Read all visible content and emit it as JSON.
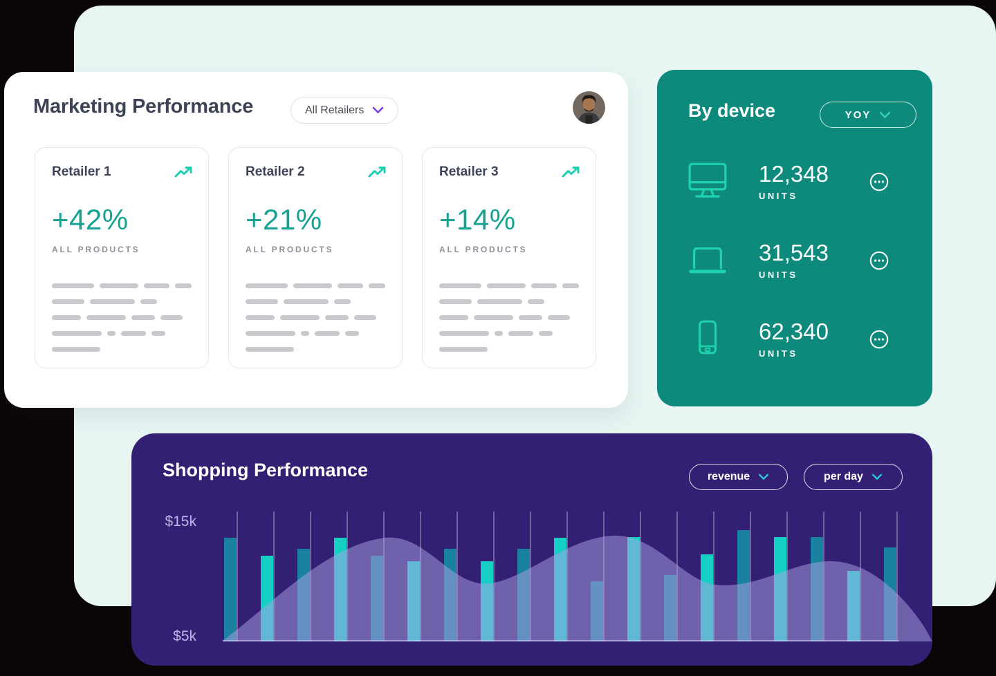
{
  "colors": {
    "mint_background": "#e7f6f3",
    "teal_card": "#0e8a7d",
    "purple_card": "#332075",
    "accent_teal": "#16a292",
    "icon_teal": "#1fd2ad",
    "purple_chevron": "#7a3df0",
    "bar_dark": "#1a81a0",
    "bar_bright": "#15cec4"
  },
  "marketing": {
    "title": "Marketing Performance",
    "filter_label": "All Retailers",
    "retailers": [
      {
        "name": "Retailer 1",
        "change": "+42%",
        "sublabel": "ALL PRODUCTS"
      },
      {
        "name": "Retailer 2",
        "change": "+21%",
        "sublabel": "ALL PRODUCTS"
      },
      {
        "name": "Retailer 3",
        "change": "+14%",
        "sublabel": "ALL PRODUCTS"
      }
    ],
    "skeleton_rows": [
      [
        62,
        57,
        38,
        24
      ],
      [
        47,
        65,
        24
      ],
      [
        42,
        57,
        34,
        32
      ],
      [
        72,
        12,
        36,
        20
      ],
      [
        70
      ]
    ]
  },
  "by_device": {
    "title": "By device",
    "filter_label": "YOY",
    "rows": [
      {
        "icon": "desktop-icon",
        "value": "12,348",
        "unit_label": "UNITS"
      },
      {
        "icon": "laptop-icon",
        "value": "31,543",
        "unit_label": "UNITS"
      },
      {
        "icon": "mobile-icon",
        "value": "62,340",
        "unit_label": "UNITS"
      }
    ]
  },
  "shopping": {
    "title": "Shopping Performance",
    "filters": [
      {
        "label": "revenue"
      },
      {
        "label": "per day"
      }
    ]
  },
  "chart_data": {
    "type": "bar",
    "title": "Shopping Performance",
    "series": [
      {
        "name": "revenue per day",
        "values_thousand_usd": [
          13.5,
          12.0,
          12.6,
          13.5,
          12.0,
          11.5,
          12.6,
          11.5,
          12.6,
          13.5,
          9.8,
          13.6,
          10.3,
          12.1,
          14.2,
          13.6,
          13.6,
          10.7,
          12.7
        ]
      }
    ],
    "bar_color_pattern": [
      "#1a81a0",
      "#15cec4"
    ],
    "area_overlay": true,
    "area_overlay_color": "rgba(173,162,228,0.5)",
    "y_axis": {
      "labels": [
        "$15k",
        "$5k"
      ],
      "top_value_k": 15,
      "bottom_value_k": 5
    },
    "x_axis": {
      "labels_visible": false,
      "n_bars": 19
    },
    "grid": "vertical",
    "legend": "none"
  }
}
